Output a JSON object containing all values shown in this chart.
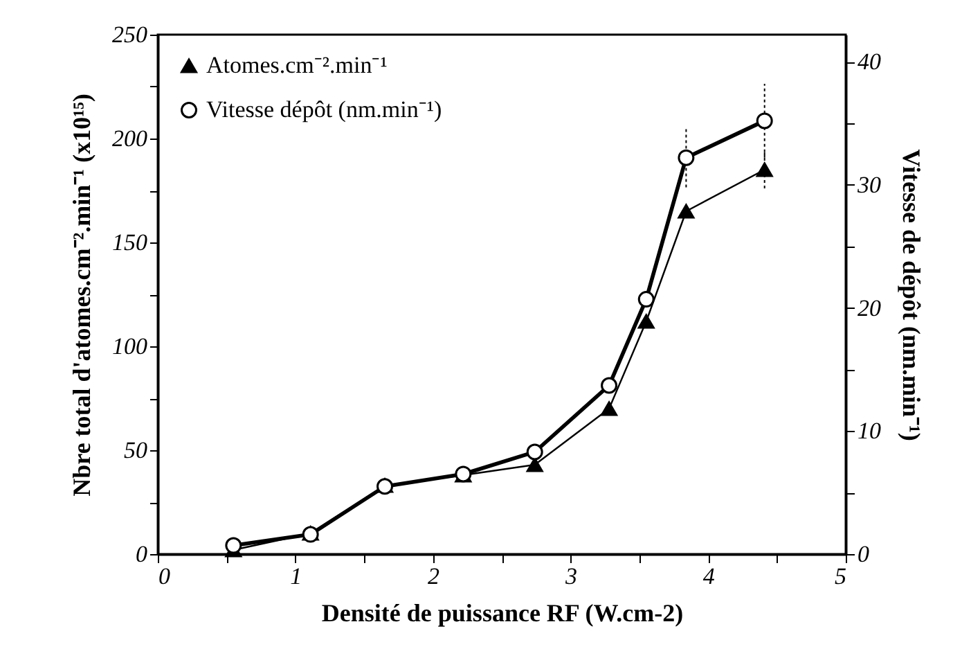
{
  "chart_data": {
    "type": "line",
    "xlabel": "Densité de puissance RF (W.cm-2)",
    "ylabel": "Nbre total d'atomes.cm⁻².min⁻¹ (x10¹⁵)",
    "y2label": "Vitesse de dépôt (nm.min⁻¹)",
    "x": [
      0.55,
      1.11,
      1.65,
      2.22,
      2.74,
      3.28,
      3.55,
      3.84,
      4.41
    ],
    "series": [
      {
        "name": "Atomes.cm⁻².min⁻¹",
        "color": "#000000",
        "marker": "triangle",
        "values": [
          2,
          10,
          33,
          38,
          43,
          70,
          112,
          165,
          185
        ],
        "errors": [
          null,
          null,
          null,
          null,
          null,
          null,
          null,
          null,
          9
        ]
      },
      {
        "name": "Vitesse dépôt (nm.min⁻¹)",
        "color": "#000000",
        "marker": "circle",
        "axis": "y2",
        "values": [
          0.7,
          1.6,
          5.5,
          6.5,
          8.3,
          13.7,
          20.7,
          32.2,
          35.2
        ],
        "errors": [
          null,
          null,
          null,
          null,
          null,
          null,
          null,
          2.4,
          3
        ]
      }
    ],
    "xlim": [
      0,
      5
    ],
    "xticks": [
      0,
      {
        "value": 0.5,
        "label": null
      },
      1,
      {
        "value": 1.5,
        "label": null
      },
      2,
      {
        "value": 2.5,
        "label": null
      },
      3,
      {
        "value": 3.5,
        "label": null
      },
      4,
      {
        "value": 4.5,
        "label": null
      },
      5
    ],
    "ylim": [
      0,
      250
    ],
    "yticks": [
      0,
      {
        "value": 25,
        "label": null
      },
      50,
      {
        "value": 75,
        "label": null
      },
      100,
      {
        "value": 125,
        "label": null
      },
      150,
      {
        "value": 175,
        "label": null
      },
      200,
      {
        "value": 225,
        "label": null
      },
      250
    ],
    "y2lim": [
      0,
      42.2
    ],
    "y2ticks": [
      0,
      {
        "value": 5,
        "label": null
      },
      10,
      {
        "value": 15,
        "label": null
      },
      20,
      {
        "value": 25,
        "label": null
      },
      30,
      {
        "value": 35,
        "label": null
      },
      40
    ],
    "legend": "top left",
    "grid": false
  }
}
